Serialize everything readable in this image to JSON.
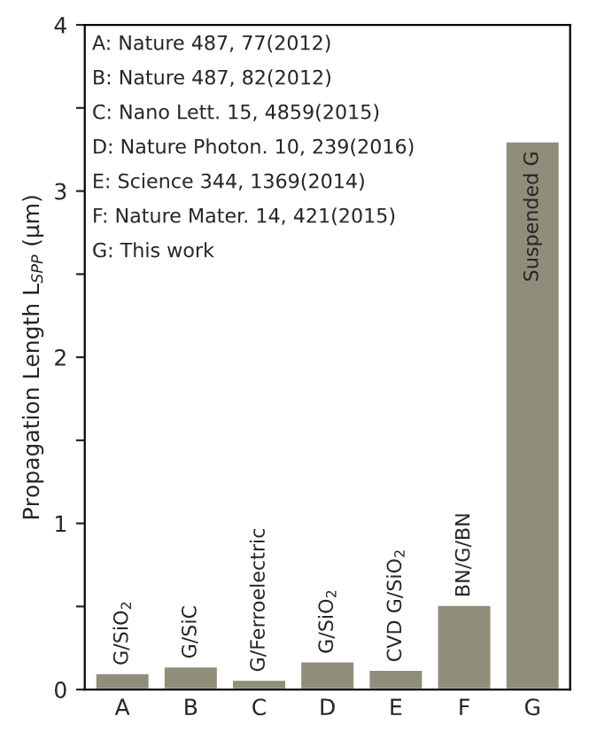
{
  "chart_data": {
    "type": "bar",
    "ylabel": "Propagation Length L$_{SPP}$ (μm)",
    "categories": [
      "A",
      "B",
      "C",
      "D",
      "E",
      "F",
      "G"
    ],
    "values": [
      0.1,
      0.14,
      0.06,
      0.17,
      0.12,
      0.51,
      3.3
    ],
    "color": "#8e8e7a",
    "ylim": [
      0,
      4
    ],
    "yticks": [
      0,
      {
        "value": 0.5,
        "label": null
      },
      1,
      {
        "value": 1.5,
        "label": null
      },
      2,
      {
        "value": 2.5,
        "label": null
      },
      3,
      {
        "value": 3.5,
        "label": null
      },
      4
    ],
    "grid": false,
    "legend": false,
    "annotations": [
      "A: Nature 487, 77(2012)",
      "B: Nature 487, 82(2012)",
      "C: Nano Lett. 15, 4859(2015)",
      "D: Nature Photon. 10, 239(2016)",
      "E: Science 344, 1369(2014)",
      "F: Nature Mater. 14, 421(2015)",
      "G: This work",
      {
        "text": "G/SiO$_{2}$",
        "x": "A",
        "y": 0.1
      },
      {
        "text": "G/SiC",
        "x": "B",
        "y": 0.14
      },
      {
        "text": "G/Ferroelectric",
        "x": "C",
        "y": 0.06
      },
      {
        "text": "G/SiO$_{2}$",
        "x": "D",
        "y": 0.17
      },
      {
        "text": "CVD G/SiO$_{2}$",
        "x": "E",
        "y": 0.12
      },
      {
        "text": "BN/G/BN",
        "x": "F",
        "y": 0.51
      },
      {
        "text": "Suspended G",
        "x": "G",
        "y": 3.3
      }
    ]
  }
}
